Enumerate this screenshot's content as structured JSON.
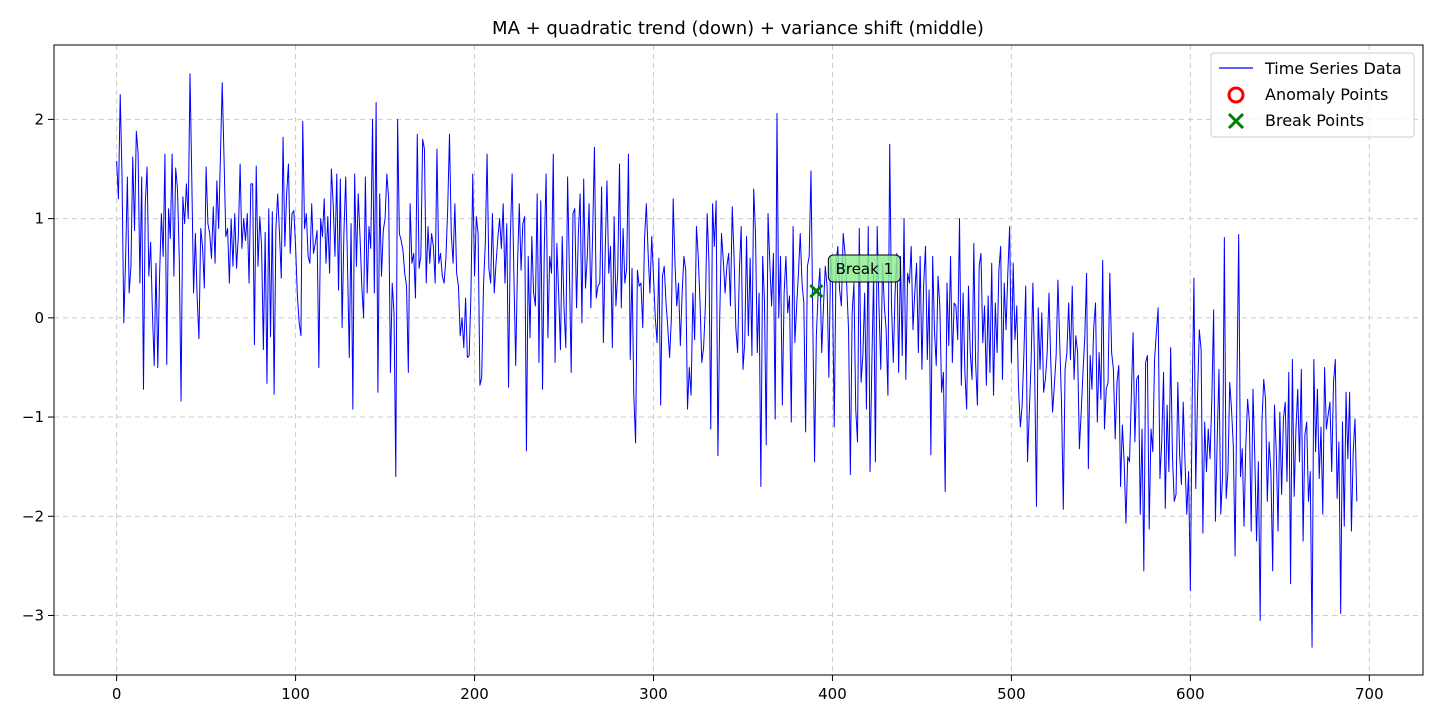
{
  "chart_data": {
    "type": "line",
    "title": "MA + quadratic trend (down) + variance shift (middle)",
    "xlabel": "",
    "ylabel": "",
    "xlim": [
      -35,
      730
    ],
    "ylim": [
      -3.6,
      2.75
    ],
    "xticks": [
      0,
      100,
      200,
      300,
      400,
      500,
      600,
      700
    ],
    "yticks": [
      -3,
      -2,
      -1,
      0,
      1,
      2
    ],
    "grid": true,
    "legend_position": "top-right",
    "legend": [
      {
        "label": "Time Series Data",
        "marker": "line",
        "color": "#0000ff"
      },
      {
        "label": "Anomaly Points",
        "marker": "circle-open",
        "color": "#ff0000"
      },
      {
        "label": "Break Points",
        "marker": "x",
        "color": "#008000"
      }
    ],
    "series": [
      {
        "name": "Time Series Data",
        "color": "#0000ff",
        "x_start": 0,
        "x_step": 1,
        "values": [
          1.58,
          1.2,
          2.25,
          1.45,
          -0.05,
          0.58,
          1.42,
          0.25,
          0.52,
          1.62,
          0.88,
          1.88,
          1.66,
          0.35,
          1.42,
          -0.72,
          1.15,
          1.52,
          0.42,
          0.76,
          0.05,
          -0.48,
          0.55,
          -0.5,
          0.42,
          1.05,
          0.62,
          1.65,
          -0.47,
          1.1,
          0.8,
          1.65,
          0.42,
          1.51,
          1.3,
          0.6,
          -0.84,
          1.22,
          0.95,
          1.35,
          1.0,
          2.46,
          1.4,
          0.25,
          0.85,
          0.2,
          -0.21,
          0.9,
          0.72,
          0.3,
          1.52,
          0.95,
          0.85,
          0.6,
          1.12,
          0.55,
          1.38,
          0.9,
          1.62,
          2.37,
          1.62,
          0.82,
          0.9,
          0.35,
          1.0,
          0.52,
          1.05,
          0.5,
          0.82,
          1.55,
          0.7,
          1.0,
          0.78,
          1.05,
          0.35,
          1.35,
          1.35,
          -0.27,
          1.53,
          0.52,
          1.02,
          0.72,
          -0.32,
          0.86,
          -0.66,
          1.1,
          -0.19,
          1.07,
          -0.77,
          0.9,
          1.25,
          0.85,
          0.4,
          1.82,
          0.72,
          1.25,
          1.55,
          0.65,
          1.05,
          1.08,
          0.72,
          0.22,
          -0.05,
          -0.18,
          1.98,
          0.9,
          1.05,
          0.62,
          0.55,
          1.15,
          0.65,
          0.75,
          0.88,
          -0.5,
          1.0,
          0.82,
          1.2,
          0.55,
          1.02,
          0.45,
          1.5,
          1.15,
          0.62,
          1.45,
          0.28,
          1.4,
          -0.1,
          0.85,
          1.42,
          0.55,
          -0.4,
          0.95,
          -0.92,
          1.45,
          0.52,
          1.25,
          0.82,
          0.32,
          0.0,
          1.42,
          0.25,
          0.92,
          0.7,
          2.0,
          0.25,
          2.17,
          -0.75,
          1.25,
          0.42,
          0.88,
          1.0,
          1.45,
          1.2,
          -0.55,
          0.35,
          0.05,
          -1.6,
          2.0,
          0.85,
          0.78,
          0.68,
          0.45,
          0.32,
          -0.55,
          1.15,
          0.55,
          0.65,
          0.2,
          1.85,
          0.5,
          0.62,
          1.8,
          1.7,
          0.35,
          0.92,
          0.55,
          0.85,
          0.72,
          0.35,
          1.7,
          0.55,
          0.65,
          0.42,
          0.35,
          0.6,
          1.1,
          1.85,
          0.85,
          0.55,
          1.15,
          0.45,
          0.32,
          -0.18,
          0.0,
          -0.3,
          0.2,
          -0.4,
          -0.38,
          0.25,
          1.45,
          0.42,
          1.02,
          0.85,
          -0.68,
          -0.6,
          0.32,
          0.75,
          1.65,
          0.5,
          0.35,
          1.05,
          0.25,
          0.55,
          0.8,
          1.0,
          0.7,
          1.15,
          0.35,
          0.95,
          -0.7,
          0.8,
          1.45,
          0.42,
          -0.48,
          0.52,
          1.15,
          0.48,
          0.95,
          1.02,
          -1.34,
          0.62,
          -0.2,
          0.82,
          0.25,
          0.12,
          1.25,
          -0.45,
          1.18,
          -0.72,
          0.72,
          1.45,
          -0.2,
          0.62,
          0.45,
          1.65,
          -0.45,
          0.75,
          0.25,
          -0.32,
          0.82,
          0.1,
          -0.3,
          1.42,
          0.48,
          -0.55,
          1.05,
          1.1,
          0.1,
          0.85,
          1.25,
          -0.05,
          1.4,
          0.3,
          0.62,
          1.15,
          0.1,
          0.85,
          1.72,
          0.2,
          0.32,
          0.35,
          1.32,
          -0.25,
          0.65,
          1.38,
          0.45,
          0.72,
          -0.3,
          1.02,
          0.12,
          0.45,
          1.55,
          0.1,
          0.9,
          0.35,
          0.5,
          1.65,
          -0.42,
          0.5,
          -0.78,
          -1.26,
          0.48,
          0.32,
          0.35,
          -0.1,
          0.8,
          1.15,
          0.65,
          0.25,
          0.82,
          0.42,
          0.0,
          -0.25,
          0.6,
          -0.88,
          0.42,
          0.52,
          0.15,
          -0.1,
          -0.4,
          0.0,
          1.2,
          0.55,
          0.12,
          0.35,
          -0.28,
          0.25,
          0.62,
          0.48,
          -0.92,
          -0.5,
          -0.78,
          0.25,
          -0.22,
          0.92,
          0.62,
          0.15,
          -0.45,
          -0.3,
          0.12,
          1.05,
          0.55,
          -1.12,
          1.15,
          0.72,
          1.18,
          -1.39,
          0.0,
          0.85,
          0.58,
          0.25,
          0.52,
          0.65,
          0.12,
          1.12,
          0.62,
          -0.1,
          -0.35,
          0.48,
          0.92,
          -0.52,
          -0.25,
          0.82,
          -0.18,
          0.6,
          -0.38,
          1.3,
          0.85,
          -0.35,
          0.25,
          -1.7,
          0.62,
          0.18,
          -1.28,
          1.05,
          0.55,
          0.12,
          0.65,
          -1.02,
          2.06,
          0.0,
          0.62,
          -0.88,
          0.25,
          0.62,
          0.05,
          0.22,
          -1.05,
          0.92,
          -0.25,
          0.12,
          0.45,
          0.85,
          0.35,
          0.15,
          -1.15,
          0.52,
          0.62,
          1.48,
          0.0,
          -1.45,
          -0.18,
          0.25,
          0.5,
          -0.35,
          0.12,
          0.52,
          0.32,
          -0.6,
          0.62,
          0.35,
          -1.1,
          0.55,
          0.72,
          0.28,
          0.12,
          0.85,
          0.65,
          0.32,
          -0.12,
          -1.58,
          0.05,
          0.35,
          -0.92,
          -1.25,
          0.9,
          -0.65,
          -0.38,
          0.25,
          -0.92,
          0.92,
          -1.55,
          -0.48,
          0.45,
          -1.45,
          0.92,
          0.12,
          -0.52,
          0.55,
          0.12,
          -0.12,
          -0.78,
          1.75,
          0.12,
          -0.45,
          0.25,
          0.65,
          -0.55,
          0.62,
          -0.38,
          1.0,
          -0.62,
          0.45,
          0.35,
          0.72,
          -0.12,
          0.25,
          0.55,
          -0.35,
          0.62,
          -0.52,
          0.35,
          0.72,
          -0.42,
          0.28,
          -1.38,
          0.62,
          -0.12,
          -0.48,
          0.42,
          0.12,
          -0.75,
          -0.55,
          -1.75,
          0.35,
          -0.28,
          0.62,
          -0.45,
          0.15,
          0.12,
          -0.22,
          1.0,
          -0.68,
          0.25,
          -0.55,
          -0.92,
          0.32,
          -0.35,
          -0.62,
          0.75,
          -0.45,
          -0.88,
          0.52,
          0.65,
          -0.25,
          0.12,
          -0.68,
          0.22,
          -0.55,
          0.55,
          -0.78,
          0.15,
          -0.35,
          0.48,
          0.72,
          -0.62,
          0.35,
          -0.12,
          0.45,
          0.92,
          -0.45,
          0.55,
          -0.22,
          0.12,
          -0.72,
          -1.1,
          -0.88,
          -0.35,
          0.32,
          -1.45,
          -0.95,
          -0.45,
          0.35,
          -0.55,
          -1.9,
          0.1,
          -0.52,
          0.05,
          -0.75,
          -0.62,
          -0.35,
          0.25,
          -0.45,
          -0.95,
          -0.68,
          -0.38,
          0.38,
          -0.25,
          -0.85,
          -1.93,
          -0.52,
          -0.35,
          0.15,
          -0.42,
          0.32,
          -0.62,
          -0.18,
          -0.35,
          -1.32,
          -0.95,
          -0.55,
          -0.2,
          0.45,
          -1.52,
          -0.38,
          -0.72,
          -0.1,
          0.15,
          -1.05,
          -0.35,
          -0.82,
          0.58,
          -1.12,
          -0.72,
          -0.65,
          0.45,
          -0.35,
          -0.52,
          -1.22,
          -0.65,
          -0.48,
          -1.7,
          -1.08,
          -1.45,
          -2.07,
          -1.4,
          -1.45,
          -0.8,
          -0.15,
          -1.25,
          -0.62,
          -0.58,
          -1.98,
          -1.12,
          -2.55,
          -0.45,
          -0.38,
          -2.13,
          -1.12,
          -1.35,
          -0.42,
          -0.15,
          0.1,
          -1.62,
          -1.25,
          -0.55,
          -1.92,
          -0.88,
          -1.55,
          -0.3,
          -1.4,
          -1.85,
          -1.78,
          -0.65,
          -1.38,
          -1.68,
          -0.85,
          -1.45,
          -1.98,
          -1.55,
          -2.75,
          -0.85,
          0.4,
          -1.72,
          -0.8,
          -0.12,
          -0.32,
          -2.17,
          -1.05,
          -1.55,
          -1.12,
          -1.42,
          -0.82,
          0.08,
          -2.05,
          -1.22,
          -0.52,
          -1.98,
          -1.6,
          0.81,
          -1.82,
          -1.55,
          -0.65,
          -0.92,
          -1.3,
          -2.4,
          -0.72,
          0.84,
          -1.6,
          -1.32,
          -2.1,
          -1.28,
          -0.82,
          -1.05,
          -2.15,
          -0.72,
          -1.4,
          -2.25,
          -1.45,
          -3.05,
          -1.05,
          -0.62,
          -0.82,
          -1.85,
          -1.25,
          -1.55,
          -2.55,
          -0.88,
          -1.35,
          -2.15,
          -0.95,
          -1.78,
          -1.02,
          -0.85,
          -1.65,
          -0.55,
          -2.68,
          -0.42,
          -1.8,
          -1.12,
          -0.72,
          -1.45,
          -0.52,
          -2.25,
          -1.18,
          -1.05,
          -1.85,
          -1.55,
          -3.32,
          -0.42,
          -1.35,
          -0.72,
          -1.62,
          -1.1,
          -1.98,
          -0.5,
          -1.12,
          -0.98,
          -0.85,
          -1.55,
          -0.65,
          -0.42,
          -1.82,
          -1.25,
          -2.98,
          -1.05,
          -2.1,
          -0.75,
          -1.42,
          -0.75,
          -2.15,
          -1.35,
          -1.02,
          -1.85
        ]
      }
    ],
    "anomalies": [],
    "breaks": [
      {
        "x": 391,
        "y": 0.27,
        "label": "Break 1"
      }
    ],
    "colors": {
      "line": "#0000ff",
      "anomaly": "#ff0000",
      "break": "#008000",
      "break_label_bg": "#90ee90",
      "grid": "#cccccc"
    }
  }
}
